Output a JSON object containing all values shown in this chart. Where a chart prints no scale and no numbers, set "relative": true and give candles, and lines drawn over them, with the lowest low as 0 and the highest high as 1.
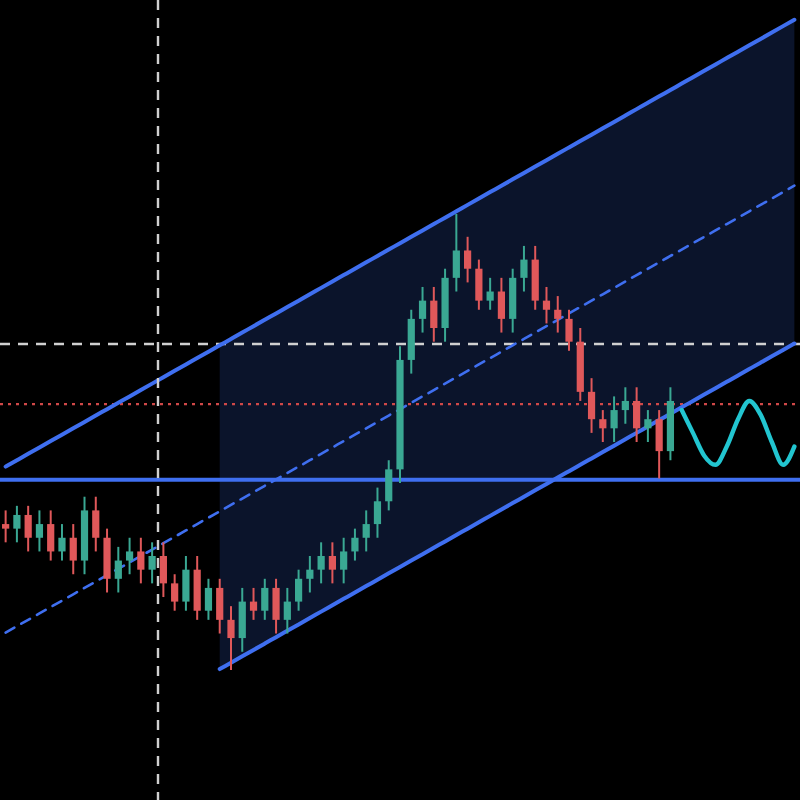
{
  "chart_data": {
    "type": "candlestick",
    "relative": true,
    "categories": [
      null,
      null,
      null,
      null,
      null,
      null,
      null,
      null,
      null,
      null,
      null,
      null,
      null,
      null,
      null,
      null,
      null,
      null,
      null,
      null,
      null,
      null,
      null,
      null,
      null,
      null,
      null,
      null,
      null,
      null,
      null,
      null,
      null,
      null,
      null,
      null,
      null,
      null,
      null,
      null,
      null,
      null,
      null,
      null,
      null,
      null,
      null,
      null,
      null,
      null,
      null,
      null,
      null,
      null,
      null,
      null,
      null,
      null,
      null,
      null,
      null,
      null,
      null,
      null,
      null,
      null,
      null,
      null,
      null,
      null,
      null
    ],
    "ohlc": [
      [
        0.32,
        0.35,
        0.28,
        0.31
      ],
      [
        0.31,
        0.36,
        0.28,
        0.34
      ],
      [
        0.34,
        0.36,
        0.26,
        0.29
      ],
      [
        0.29,
        0.35,
        0.26,
        0.32
      ],
      [
        0.32,
        0.35,
        0.24,
        0.26
      ],
      [
        0.26,
        0.32,
        0.24,
        0.29
      ],
      [
        0.29,
        0.32,
        0.21,
        0.24
      ],
      [
        0.24,
        0.38,
        0.21,
        0.35
      ],
      [
        0.35,
        0.38,
        0.26,
        0.29
      ],
      [
        0.29,
        0.31,
        0.17,
        0.2
      ],
      [
        0.2,
        0.27,
        0.17,
        0.24
      ],
      [
        0.24,
        0.29,
        0.21,
        0.26
      ],
      [
        0.26,
        0.29,
        0.19,
        0.22
      ],
      [
        0.22,
        0.28,
        0.19,
        0.25
      ],
      [
        0.25,
        0.28,
        0.16,
        0.19
      ],
      [
        0.19,
        0.21,
        0.13,
        0.15
      ],
      [
        0.15,
        0.25,
        0.13,
        0.22
      ],
      [
        0.22,
        0.25,
        0.11,
        0.13
      ],
      [
        0.13,
        0.2,
        0.11,
        0.18
      ],
      [
        0.18,
        0.2,
        0.08,
        0.11
      ],
      [
        0.11,
        0.14,
        0,
        0.07
      ],
      [
        0.07,
        0.18,
        0.04,
        0.15
      ],
      [
        0.15,
        0.18,
        0.11,
        0.13
      ],
      [
        0.13,
        0.2,
        0.11,
        0.18
      ],
      [
        0.18,
        0.2,
        0.08,
        0.11
      ],
      [
        0.11,
        0.18,
        0.08,
        0.15
      ],
      [
        0.15,
        0.22,
        0.13,
        0.2
      ],
      [
        0.2,
        0.25,
        0.17,
        0.22
      ],
      [
        0.22,
        0.28,
        0.19,
        0.25
      ],
      [
        0.25,
        0.28,
        0.19,
        0.22
      ],
      [
        0.22,
        0.29,
        0.19,
        0.26
      ],
      [
        0.26,
        0.31,
        0.24,
        0.29
      ],
      [
        0.29,
        0.35,
        0.26,
        0.32
      ],
      [
        0.32,
        0.4,
        0.29,
        0.37
      ],
      [
        0.37,
        0.46,
        0.35,
        0.44
      ],
      [
        0.44,
        0.71,
        0.41,
        0.68
      ],
      [
        0.68,
        0.79,
        0.65,
        0.77
      ],
      [
        0.77,
        0.84,
        0.74,
        0.81
      ],
      [
        0.81,
        0.84,
        0.72,
        0.75
      ],
      [
        0.75,
        0.88,
        0.72,
        0.86
      ],
      [
        0.86,
        1,
        0.83,
        0.92
      ],
      [
        0.92,
        0.95,
        0.85,
        0.88
      ],
      [
        0.88,
        0.9,
        0.79,
        0.81
      ],
      [
        0.81,
        0.86,
        0.79,
        0.83
      ],
      [
        0.83,
        0.86,
        0.74,
        0.77
      ],
      [
        0.77,
        0.88,
        0.74,
        0.86
      ],
      [
        0.86,
        0.93,
        0.83,
        0.9
      ],
      [
        0.9,
        0.93,
        0.79,
        0.81
      ],
      [
        0.81,
        0.84,
        0.76,
        0.79
      ],
      [
        0.79,
        0.82,
        0.74,
        0.77
      ],
      [
        0.77,
        0.79,
        0.7,
        0.72
      ],
      [
        0.72,
        0.75,
        0.59,
        0.61
      ],
      [
        0.61,
        0.64,
        0.52,
        0.55
      ],
      [
        0.55,
        0.57,
        0.5,
        0.53
      ],
      [
        0.53,
        0.6,
        0.5,
        0.57
      ],
      [
        0.57,
        0.62,
        0.54,
        0.59
      ],
      [
        0.59,
        0.62,
        0.5,
        0.53
      ],
      [
        0.53,
        0.57,
        0.5,
        0.55
      ],
      [
        0.55,
        0.57,
        0.42,
        0.48
      ],
      [
        0.48,
        0.62,
        0.46,
        0.59
      ],
      null,
      null,
      null,
      null,
      null,
      null,
      null,
      null,
      null,
      null,
      null
    ],
    "series": [
      {
        "type": "line",
        "color": "#3f6ff0",
        "line_style": "dashed",
        "values": [
          0.082,
          0.096,
          0.11,
          0.124,
          0.138,
          0.152,
          0.166,
          0.18,
          0.194,
          0.208,
          0.222,
          0.236,
          0.25,
          0.264,
          0.278,
          0.292,
          0.306,
          0.32,
          0.334,
          0.348,
          0.362,
          0.376,
          0.39,
          0.404,
          0.418,
          0.432,
          0.446,
          0.46,
          0.474,
          0.488,
          0.502,
          0.516,
          0.53,
          0.544,
          0.558,
          0.572,
          0.586,
          0.6,
          0.614,
          0.628,
          0.642,
          0.656,
          0.67,
          0.684,
          0.698,
          0.712,
          0.726,
          0.74,
          0.754,
          0.768,
          0.782,
          0.796,
          0.81,
          0.824,
          0.838,
          0.852,
          0.866,
          0.88,
          0.894,
          0.908,
          0.922,
          0.936,
          0.95,
          0.964,
          0.978,
          0.992,
          1.006,
          1.02,
          1.034,
          1.048,
          1.062
        ],
        "lower": [
          null,
          null,
          null,
          null,
          null,
          null,
          null,
          null,
          null,
          null,
          null,
          null,
          null,
          null,
          null,
          null,
          null,
          null,
          null,
          0.002,
          0.016,
          0.03,
          0.044,
          0.058,
          0.072,
          0.086,
          0.1,
          0.114,
          0.128,
          0.142,
          0.156,
          0.17,
          0.184,
          0.198,
          0.212,
          0.226,
          0.24,
          0.254,
          0.268,
          0.282,
          0.296,
          0.31,
          0.324,
          0.338,
          0.352,
          0.366,
          0.38,
          0.394,
          0.408,
          0.422,
          0.436,
          0.45,
          0.464,
          0.478,
          0.492,
          0.506,
          0.52,
          0.534,
          0.548,
          0.562,
          0.576,
          0.59,
          0.604,
          0.618,
          0.632,
          0.646,
          0.66,
          0.674,
          0.688,
          0.702,
          0.716
        ],
        "upper": [
          null,
          null,
          null,
          null,
          null,
          null,
          null,
          null,
          null,
          null,
          null,
          null,
          null,
          null,
          null,
          null,
          null,
          null,
          null,
          0.712,
          0.726,
          0.74,
          0.754,
          0.768,
          0.782,
          0.796,
          0.81,
          0.824,
          0.838,
          0.852,
          0.866,
          0.88,
          0.894,
          0.908,
          0.922,
          0.936,
          0.95,
          0.964,
          0.978,
          0.992,
          1.006,
          1.02,
          1.034,
          1.048,
          1.062,
          1.076,
          1.09,
          1.104,
          1.118,
          1.132,
          1.146,
          1.16,
          1.174,
          1.188,
          1.202,
          1.216,
          1.23,
          1.244,
          1.258,
          1.272,
          1.286,
          1.3,
          1.314,
          1.328,
          1.342,
          1.356,
          1.37,
          1.384,
          1.398,
          1.412,
          1.426
        ]
      },
      {
        "type": "line",
        "color": "#3f6ff0",
        "line_style": "solid",
        "values": [
          0.446,
          0.46,
          0.474,
          0.488,
          0.502,
          0.516,
          0.53,
          0.544,
          0.558,
          0.572,
          0.586,
          0.6,
          0.614,
          0.628,
          0.642,
          0.656,
          0.67,
          0.684,
          0.698,
          0.712,
          0.726,
          0.74,
          0.754,
          0.768,
          0.782,
          0.796,
          0.81,
          0.824,
          0.838,
          0.852,
          0.866,
          0.88,
          0.894,
          0.908,
          0.922,
          0.936,
          0.95,
          0.964,
          0.978,
          0.992,
          1.006,
          1.02,
          1.034,
          1.048,
          1.062,
          1.076,
          1.09,
          1.104,
          1.118,
          1.132,
          1.146,
          1.16,
          1.174,
          1.188,
          1.202,
          1.216,
          1.23,
          1.244,
          1.258,
          1.272,
          1.286,
          1.3,
          1.314,
          1.328,
          1.342,
          1.356,
          1.37,
          1.384,
          1.398,
          1.412,
          1.426
        ]
      },
      {
        "type": "line",
        "color": "#3f6ff0",
        "line_style": "solid",
        "values": [
          null,
          null,
          null,
          null,
          null,
          null,
          null,
          null,
          null,
          null,
          null,
          null,
          null,
          null,
          null,
          null,
          null,
          null,
          null,
          0.002,
          0.016,
          0.03,
          0.044,
          0.058,
          0.072,
          0.086,
          0.1,
          0.114,
          0.128,
          0.142,
          0.156,
          0.17,
          0.184,
          0.198,
          0.212,
          0.226,
          0.24,
          0.254,
          0.268,
          0.282,
          0.296,
          0.31,
          0.324,
          0.338,
          0.352,
          0.366,
          0.38,
          0.394,
          0.408,
          0.422,
          0.436,
          0.45,
          0.464,
          0.478,
          0.492,
          0.506,
          0.52,
          0.534,
          0.548,
          0.562,
          0.576,
          0.59,
          0.604,
          0.618,
          0.632,
          0.646,
          0.66,
          0.674,
          0.688,
          0.702,
          0.716
        ]
      },
      {
        "type": "line",
        "color": "#22c5d0",
        "line_style": "solid",
        "values": [
          null,
          null,
          null,
          null,
          null,
          null,
          null,
          null,
          null,
          null,
          null,
          null,
          null,
          null,
          null,
          null,
          null,
          null,
          null,
          null,
          null,
          null,
          null,
          null,
          null,
          null,
          null,
          null,
          null,
          null,
          null,
          null,
          null,
          null,
          null,
          null,
          null,
          null,
          null,
          null,
          null,
          null,
          null,
          null,
          null,
          null,
          null,
          null,
          null,
          null,
          null,
          null,
          null,
          null,
          null,
          null,
          null,
          null,
          null,
          null,
          0.57,
          0.52,
          0.47,
          0.45,
          0.49,
          0.55,
          0.59,
          0.56,
          0.5,
          0.45,
          0.49
        ]
      }
    ],
    "ref_lines": [
      {
        "axis": "y",
        "value": 0.417,
        "color": "#3f6ff0",
        "line_style": "solid"
      },
      {
        "axis": "y",
        "value": 0.715,
        "color": "#d0d0d0",
        "line_style": "dashed"
      },
      {
        "axis": "y",
        "value": 0.583,
        "color": "#d04848",
        "line_style": "dotted"
      }
    ]
  }
}
